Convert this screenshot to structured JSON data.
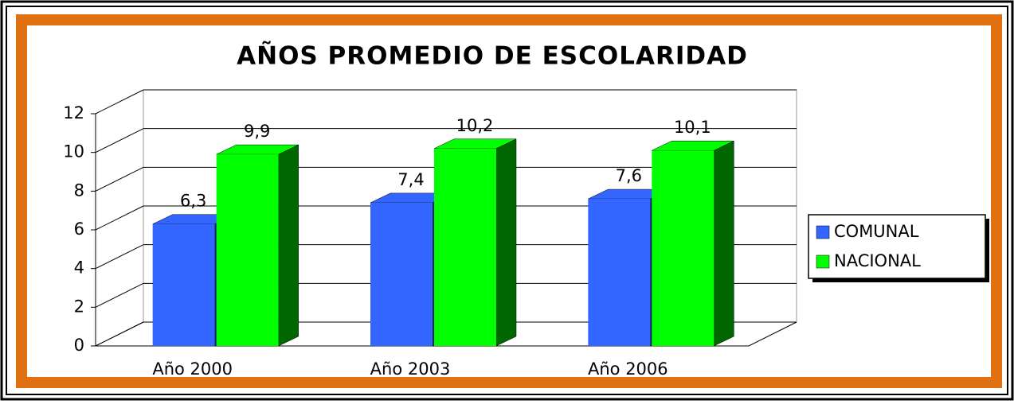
{
  "chart_data": {
    "type": "bar",
    "title": "AÑOS PROMEDIO DE ESCOLARIDAD",
    "categories": [
      "Año 2000",
      "Año 2003",
      "Año 2006"
    ],
    "series": [
      {
        "name": "COMUNAL",
        "color": "#3366ff",
        "values": [
          6.3,
          7.4,
          7.6
        ],
        "value_labels": [
          "6,3",
          "7,4",
          "7,6"
        ]
      },
      {
        "name": "NACIONAL",
        "color": "#00ff00",
        "values": [
          9.9,
          10.2,
          10.1
        ],
        "value_labels": [
          "9,9",
          "10,2",
          "10,1"
        ]
      }
    ],
    "ylim": [
      0,
      12
    ],
    "yticks": [
      0,
      2,
      4,
      6,
      8,
      10,
      12
    ],
    "grid": true,
    "legend": "right"
  }
}
